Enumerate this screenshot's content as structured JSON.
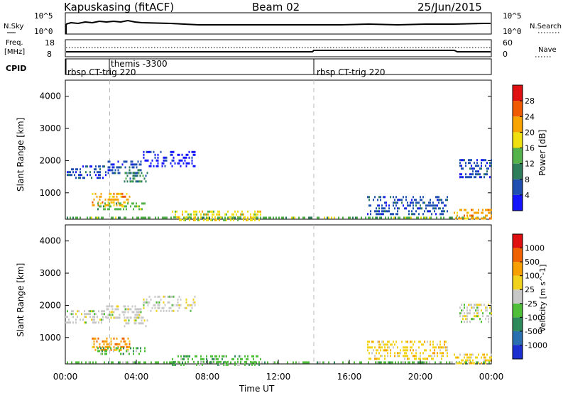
{
  "header": {
    "station": "Kapuskasing (fitACF)",
    "beam": "Beam 02",
    "date": "25/Jun/2015"
  },
  "noise_panel": {
    "left_label": "N.Sky",
    "left_ticks": [
      "10^5",
      "10^0"
    ],
    "right_ticks": [
      "10^5",
      "10^0"
    ],
    "right_label": "N.Search"
  },
  "freq_panel": {
    "left_label_1": "Freq.",
    "left_label_2": "[MHz]",
    "left_ticks": [
      "18",
      "8"
    ],
    "right_ticks": [
      "60",
      "0"
    ],
    "right_label": "Nave"
  },
  "cpid": {
    "label": "CPID",
    "segments": [
      {
        "text": "rbsp CT-trig 220",
        "start_hour": 0.0
      },
      {
        "text": "themis -3300",
        "start_hour": 2.5
      },
      {
        "text": "rbsp CT-trig 220",
        "start_hour": 14.0
      }
    ]
  },
  "colors": {
    "power": [
      "#1414ff",
      "#1f4fb0",
      "#2e7d5b",
      "#54b44b",
      "#f0e010",
      "#f7a400",
      "#f05a00",
      "#e01010"
    ],
    "velocity": [
      "#1c2fd0",
      "#2a6fb0",
      "#2e8a5a",
      "#4fbf3a",
      "#c8c8c8",
      "#f2d21a",
      "#f7a000",
      "#f06200",
      "#e01010"
    ]
  },
  "chart_data": [
    {
      "type": "heatmap",
      "quantity": "power",
      "xlabel": "",
      "ylabel": "Slant Range [km]",
      "xlim": [
        0,
        24
      ],
      "ylim": [
        180,
        4500
      ],
      "yticks": [
        "1000",
        "2000",
        "3000",
        "4000"
      ],
      "colorbar_label": "Power [dB]",
      "colorbar_ticks": [
        "4",
        "8",
        "12",
        "16",
        "20",
        "24",
        "28"
      ],
      "regions": [
        {
          "t0": 0.0,
          "t1": 2.3,
          "r0": 1450,
          "r1": 1850,
          "class": 1
        },
        {
          "t0": 2.3,
          "t1": 4.3,
          "r0": 1600,
          "r1": 2000,
          "class": 1
        },
        {
          "t0": 4.3,
          "t1": 7.3,
          "r0": 1850,
          "r1": 2300,
          "class": 0
        },
        {
          "t0": 3.3,
          "t1": 4.6,
          "r0": 1300,
          "r1": 1650,
          "class": 2
        },
        {
          "t0": 1.5,
          "t1": 3.6,
          "r0": 620,
          "r1": 1000,
          "class": 5
        },
        {
          "t0": 1.8,
          "t1": 4.5,
          "r0": 450,
          "r1": 700,
          "class": 3
        },
        {
          "t0": 6.0,
          "t1": 11.0,
          "r0": 180,
          "r1": 450,
          "class": 4
        },
        {
          "t0": 0.0,
          "t1": 24.0,
          "r0": 180,
          "r1": 260,
          "class": 3
        },
        {
          "t0": 17.0,
          "t1": 21.5,
          "r0": 300,
          "r1": 900,
          "class": 1
        },
        {
          "t0": 22.2,
          "t1": 24.0,
          "r0": 1500,
          "r1": 2050,
          "class": 1
        },
        {
          "t0": 21.8,
          "t1": 24.0,
          "r0": 220,
          "r1": 500,
          "class": 5
        }
      ]
    },
    {
      "type": "heatmap",
      "quantity": "velocity",
      "xlabel": "Time UT",
      "ylabel": "Slant Range [km]",
      "xlim": [
        0,
        24
      ],
      "ylim": [
        180,
        4500
      ],
      "xticks": [
        "00:00",
        "04:00",
        "08:00",
        "12:00",
        "16:00",
        "20:00",
        "00:00"
      ],
      "yticks": [
        "1000",
        "2000",
        "3000",
        "4000"
      ],
      "colorbar_label": "Velocity [m s^-1]",
      "colorbar_ticks": [
        "1000",
        "500",
        "100",
        "25",
        "-25",
        "-100",
        "-500",
        "-1000"
      ],
      "regions": [
        {
          "t0": 0.0,
          "t1": 2.3,
          "r0": 1450,
          "r1": 1850,
          "class": 4
        },
        {
          "t0": 2.3,
          "t1": 4.3,
          "r0": 1600,
          "r1": 2000,
          "class": 4
        },
        {
          "t0": 4.3,
          "t1": 7.3,
          "r0": 1850,
          "r1": 2300,
          "class": 4
        },
        {
          "t0": 3.3,
          "t1": 4.6,
          "r0": 1300,
          "r1": 1650,
          "class": 4
        },
        {
          "t0": 1.5,
          "t1": 3.6,
          "r0": 620,
          "r1": 1000,
          "class": 6
        },
        {
          "t0": 1.8,
          "t1": 4.5,
          "r0": 450,
          "r1": 700,
          "class": 3
        },
        {
          "t0": 6.0,
          "t1": 11.0,
          "r0": 180,
          "r1": 450,
          "class": 3
        },
        {
          "t0": 0.0,
          "t1": 24.0,
          "r0": 180,
          "r1": 260,
          "class": 3
        },
        {
          "t0": 17.0,
          "t1": 21.5,
          "r0": 300,
          "r1": 900,
          "class": 5
        },
        {
          "t0": 22.2,
          "t1": 24.0,
          "r0": 1500,
          "r1": 2050,
          "class": 4
        },
        {
          "t0": 21.8,
          "t1": 24.0,
          "r0": 220,
          "r1": 500,
          "class": 5
        }
      ]
    }
  ]
}
